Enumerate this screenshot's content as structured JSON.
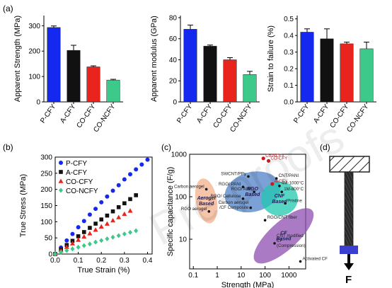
{
  "panel_labels": {
    "a": "(a)",
    "b": "(b)",
    "c": "(c)",
    "d": "(d)"
  },
  "watermark": "Pre-proofs",
  "colors": {
    "P-CFY": "#1428f0",
    "A-CFY": "#111111",
    "CO-CFY": "#e8241c",
    "CO-NCFY": "#3cc98a"
  },
  "chart_data": [
    {
      "type": "bar",
      "categories": [
        "P-CFY",
        "A-CFY",
        "CO-CFY",
        "CO-NCFY"
      ],
      "values": [
        293,
        203,
        138,
        86
      ],
      "errors": [
        6,
        20,
        4,
        3
      ],
      "ylabel": "Apparent Strength (MPa)",
      "ylim": [
        0,
        340
      ],
      "yticks": [
        0,
        100,
        200,
        300
      ]
    },
    {
      "type": "bar",
      "categories": [
        "P-CFY",
        "A-CFY",
        "CO-CFY",
        "CO-NCFY"
      ],
      "values": [
        69,
        53,
        40,
        26
      ],
      "errors": [
        4,
        1,
        2,
        3
      ],
      "ylabel": "Apparent modulus (GPa)",
      "ylim": [
        0,
        82
      ],
      "yticks": [
        0,
        20,
        40,
        60,
        80
      ]
    },
    {
      "type": "bar",
      "categories": [
        "P-CFY",
        "A-CFY",
        "CO-CFY",
        "CO-NCFY"
      ],
      "values": [
        0.42,
        0.38,
        0.35,
        0.32
      ],
      "errors": [
        0.02,
        0.06,
        0.01,
        0.04
      ],
      "ylabel": "Strain to failure (%)",
      "ylim": [
        0,
        0.52
      ],
      "yticks": [
        0.0,
        0.1,
        0.2,
        0.3,
        0.4,
        0.5
      ],
      "ytick_labels": [
        "0.0",
        "0.1",
        "0.2",
        "0.3",
        "0.4",
        "0.5"
      ]
    },
    {
      "type": "scatter",
      "xlabel": "True Strain (%)",
      "ylabel": "True Stress (MPa)",
      "xlim": [
        0,
        0.42
      ],
      "ylim": [
        0,
        300
      ],
      "xticks": [
        0.0,
        0.1,
        0.2,
        0.3,
        0.4
      ],
      "xtick_labels": [
        "0.0",
        "0.1",
        "0.2",
        "0.3",
        "0.4"
      ],
      "yticks": [
        0,
        50,
        100,
        150,
        200,
        250,
        300
      ],
      "legend": "top-left",
      "series": [
        {
          "name": "P-CFY",
          "marker": "circle",
          "x": [
            0,
            0.025,
            0.05,
            0.075,
            0.1,
            0.125,
            0.15,
            0.175,
            0.2,
            0.225,
            0.25,
            0.275,
            0.3,
            0.325,
            0.35,
            0.375,
            0.4
          ],
          "y": [
            0,
            20,
            42,
            62,
            83,
            102,
            122,
            140,
            160,
            178,
            196,
            213,
            231,
            247,
            262,
            277,
            292
          ]
        },
        {
          "name": "A-CFY",
          "marker": "square",
          "x": [
            0,
            0.025,
            0.05,
            0.075,
            0.1,
            0.125,
            0.15,
            0.175,
            0.2,
            0.225,
            0.25,
            0.275,
            0.3,
            0.325,
            0.35
          ],
          "y": [
            0,
            14,
            28,
            41,
            55,
            68,
            81,
            94,
            107,
            119,
            132,
            145,
            157,
            170,
            182
          ]
        },
        {
          "name": "CO-CFY",
          "marker": "triangle",
          "x": [
            0,
            0.025,
            0.05,
            0.075,
            0.1,
            0.125,
            0.15,
            0.175,
            0.2,
            0.225,
            0.25,
            0.275,
            0.3,
            0.325
          ],
          "y": [
            0,
            11,
            22,
            33,
            44,
            54,
            64,
            75,
            85,
            94,
            104,
            114,
            124,
            134
          ]
        },
        {
          "name": "CO-NCFY",
          "marker": "diamond",
          "x": [
            0,
            0.025,
            0.05,
            0.075,
            0.1,
            0.125,
            0.15,
            0.175,
            0.2,
            0.225,
            0.25,
            0.275,
            0.3,
            0.325,
            0.35
          ],
          "y": [
            0,
            6,
            11,
            16,
            21,
            26,
            31,
            37,
            42,
            47,
            52,
            57,
            62,
            67,
            72
          ]
        }
      ]
    },
    {
      "type": "scatter",
      "xscale": "log",
      "yscale": "log",
      "xlabel": "Strength (MPa)",
      "ylabel": "Specific capacitance (F/g)",
      "xlim": [
        0.07,
        5000
      ],
      "ylim": [
        2,
        1000
      ],
      "xticks": [
        0.1,
        1,
        10,
        100,
        1000
      ],
      "xtick_labels": [
        "0.1",
        "1",
        "10",
        "100",
        "1000"
      ],
      "yticks": [
        10,
        100,
        1000
      ],
      "ytick_labels": [
        "10",
        "100",
        "1000"
      ],
      "regions": [
        {
          "label": "Aerogel Based",
          "color": "#f3b08c",
          "cx": 0.35,
          "cy": 80
        },
        {
          "label": "RGO Based",
          "color": "#4f82c8",
          "cx": 30,
          "cy": 130
        },
        {
          "label": "CNF Based",
          "color": "#20c8b0",
          "cx": 400,
          "cy": 90
        },
        {
          "label": "CF Based",
          "color": "#8e4fb0",
          "cx": 600,
          "cy": 12
        }
      ],
      "points": [
        {
          "label": "Carbon aerogel",
          "x": 0.35,
          "y": 150
        },
        {
          "label": "RGO aerogel",
          "x": 0.45,
          "y": 45
        },
        {
          "label": "SWCNT/PPy",
          "x": 20,
          "y": 300
        },
        {
          "label": "RGO/ PANI",
          "x": 12,
          "y": 170
        },
        {
          "label": "RGO/ ANF",
          "x": 35,
          "y": 130
        },
        {
          "label": "RGO/ Cellulose",
          "x": 12,
          "y": 90
        },
        {
          "label": "Carbon aerogel /CF Composite",
          "x": 25,
          "y": 55
        },
        {
          "label": "RGO/CNT fiber",
          "x": 100,
          "y": 28
        },
        {
          "label": "CNT modified CF (Compression)",
          "x": 250,
          "y": 8
        },
        {
          "label": "Activated CF",
          "x": 3000,
          "y": 3
        },
        {
          "label": "CNT/PANI",
          "x": 300,
          "y": 270
        },
        {
          "label": "4M-1000°C",
          "x": 400,
          "y": 180
        },
        {
          "label": "1M-800°C",
          "x": 500,
          "y": 130
        },
        {
          "label": "Pristine",
          "x": 700,
          "y": 70
        },
        {
          "label": "A-CFY",
          "x": 200,
          "y": 200,
          "highlight": true
        },
        {
          "label": "CO-CFY",
          "x": 140,
          "y": 700,
          "highlight": true
        },
        {
          "label": "Co-NCFY",
          "x": 85,
          "y": 800,
          "highlight": true
        }
      ]
    }
  ],
  "schematic": {
    "force_label": "F"
  }
}
